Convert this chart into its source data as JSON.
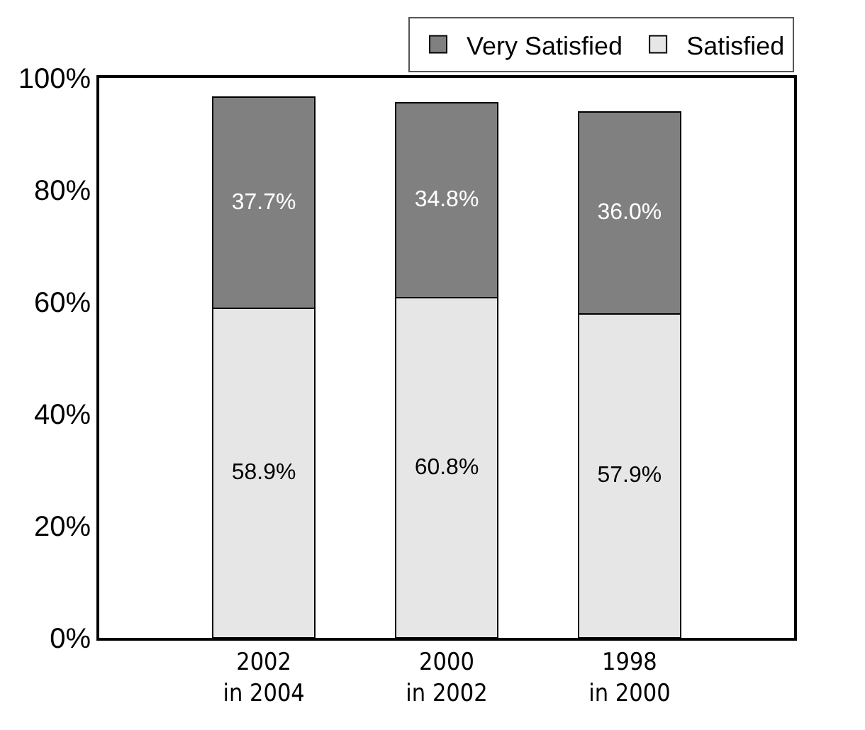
{
  "chart_data": {
    "type": "bar",
    "stacked": true,
    "categories": [
      "2002\nin 2004",
      "2000\nin 2002",
      "1998\nin 2000"
    ],
    "series": [
      {
        "name": "Satisfied",
        "color": "#e6e6e6",
        "values": [
          58.9,
          60.8,
          57.9
        ],
        "value_labels": [
          "58.9%",
          "60.8%",
          "57.9%"
        ]
      },
      {
        "name": "Very Satisfied",
        "color": "#808080",
        "values": [
          37.7,
          34.8,
          36.0
        ],
        "value_labels": [
          "37.7%",
          "34.8%",
          "36.0%"
        ]
      }
    ],
    "ylim": [
      0,
      100
    ],
    "yticks": [
      {
        "value": 0,
        "label": "0%"
      },
      {
        "value": 20,
        "label": "20%"
      },
      {
        "value": 40,
        "label": "40%"
      },
      {
        "value": 60,
        "label": "60%"
      },
      {
        "value": 80,
        "label": "80%"
      },
      {
        "value": 100,
        "label": "100%"
      }
    ],
    "grid": false,
    "legend": "top right"
  }
}
